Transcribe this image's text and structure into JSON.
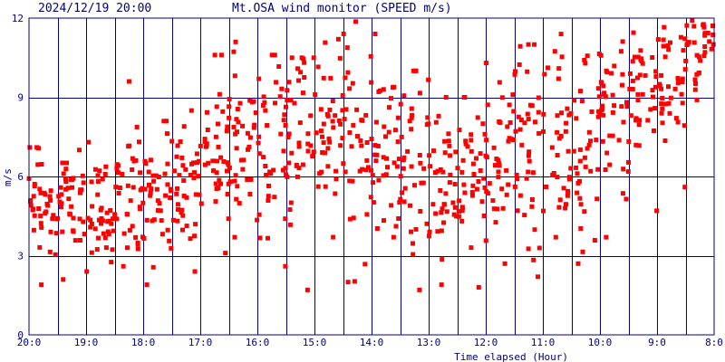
{
  "header": {
    "timestamp": "2024/12/19 20:00",
    "title": "Mt.OSA wind monitor (SPEED m/s)"
  },
  "colors": {
    "axis": "#000080",
    "grid": "#000080",
    "points": "#ff0000",
    "background": "#ffffff"
  },
  "chart_data": {
    "type": "scatter",
    "title": "Mt.OSA wind monitor (SPEED m/s)",
    "xlabel": "Time elapsed (Hour)",
    "ylabel": "m/s",
    "ylim": [
      0,
      12
    ],
    "xlim": [
      20,
      8
    ],
    "x_reversed": true,
    "grid": true,
    "y_ticks": [
      {
        "value": 0,
        "label": "0"
      },
      {
        "value": 3,
        "label": "3"
      },
      {
        "value": 6,
        "label": "6"
      },
      {
        "value": 9,
        "label": "9"
      },
      {
        "value": 12,
        "label": "12"
      }
    ],
    "x_ticks": [
      {
        "value": 20,
        "label": "20:0"
      },
      {
        "value": 19,
        "label": "19:0"
      },
      {
        "value": 18,
        "label": "18:0"
      },
      {
        "value": 17,
        "label": "17:0"
      },
      {
        "value": 16,
        "label": "16:0"
      },
      {
        "value": 15,
        "label": "15:0"
      },
      {
        "value": 14,
        "label": "14:0"
      },
      {
        "value": 13,
        "label": "13:0"
      },
      {
        "value": 12,
        "label": "12:0"
      },
      {
        "value": 11,
        "label": "11:0"
      },
      {
        "value": 10,
        "label": "10:0"
      },
      {
        "value": 9,
        "label": "9:0"
      },
      {
        "value": 8,
        "label": "8:0"
      }
    ],
    "x_minor_grid_step": 0.5,
    "points_summary": [
      {
        "from": 20.0,
        "to": 19.5,
        "mean": 4.8,
        "min": 1.9,
        "max": 7.1
      },
      {
        "from": 19.5,
        "to": 19.0,
        "mean": 5.0,
        "min": 2.1,
        "max": 7.0
      },
      {
        "from": 19.0,
        "to": 18.5,
        "mean": 4.9,
        "min": 2.4,
        "max": 7.3
      },
      {
        "from": 18.5,
        "to": 18.0,
        "mean": 5.8,
        "min": 2.6,
        "max": 9.6
      },
      {
        "from": 18.0,
        "to": 17.5,
        "mean": 5.6,
        "min": 1.9,
        "max": 8.1
      },
      {
        "from": 17.5,
        "to": 17.0,
        "mean": 5.5,
        "min": 2.4,
        "max": 8.5
      },
      {
        "from": 17.0,
        "to": 16.5,
        "mean": 6.6,
        "min": 3.1,
        "max": 10.6
      },
      {
        "from": 16.5,
        "to": 16.0,
        "mean": 6.9,
        "min": 3.7,
        "max": 11.1
      },
      {
        "from": 16.0,
        "to": 15.5,
        "mean": 7.2,
        "min": 2.6,
        "max": 10.6
      },
      {
        "from": 15.5,
        "to": 15.0,
        "mean": 7.4,
        "min": 1.7,
        "max": 10.5
      },
      {
        "from": 15.0,
        "to": 14.5,
        "mean": 7.6,
        "min": 3.7,
        "max": 11.2
      },
      {
        "from": 14.5,
        "to": 14.0,
        "mean": 7.4,
        "min": 2.0,
        "max": 12.0
      },
      {
        "from": 14.0,
        "to": 13.5,
        "mean": 7.1,
        "min": 3.7,
        "max": 11.4
      },
      {
        "from": 13.5,
        "to": 13.0,
        "mean": 6.8,
        "min": 1.7,
        "max": 10.0
      },
      {
        "from": 13.0,
        "to": 12.5,
        "mean": 5.7,
        "min": 1.9,
        "max": 9.0
      },
      {
        "from": 12.5,
        "to": 12.0,
        "mean": 5.8,
        "min": 1.8,
        "max": 9.0
      },
      {
        "from": 12.0,
        "to": 11.5,
        "mean": 6.7,
        "min": 2.7,
        "max": 10.3
      },
      {
        "from": 11.5,
        "to": 11.0,
        "mean": 7.0,
        "min": 2.2,
        "max": 11.0
      },
      {
        "from": 11.0,
        "to": 10.5,
        "mean": 7.6,
        "min": 3.7,
        "max": 12.5
      },
      {
        "from": 10.5,
        "to": 10.0,
        "mean": 7.3,
        "min": 2.7,
        "max": 12.5
      },
      {
        "from": 10.0,
        "to": 9.5,
        "mean": 8.2,
        "min": 3.7,
        "max": 12.0
      },
      {
        "from": 9.5,
        "to": 9.0,
        "mean": 9.2,
        "min": 4.7,
        "max": 12.5
      },
      {
        "from": 9.0,
        "to": 8.5,
        "mean": 10.0,
        "min": 5.6,
        "max": 12.5
      },
      {
        "from": 8.5,
        "to": 8.0,
        "mean": 11.3,
        "min": 8.9,
        "max": 12.5
      }
    ]
  }
}
